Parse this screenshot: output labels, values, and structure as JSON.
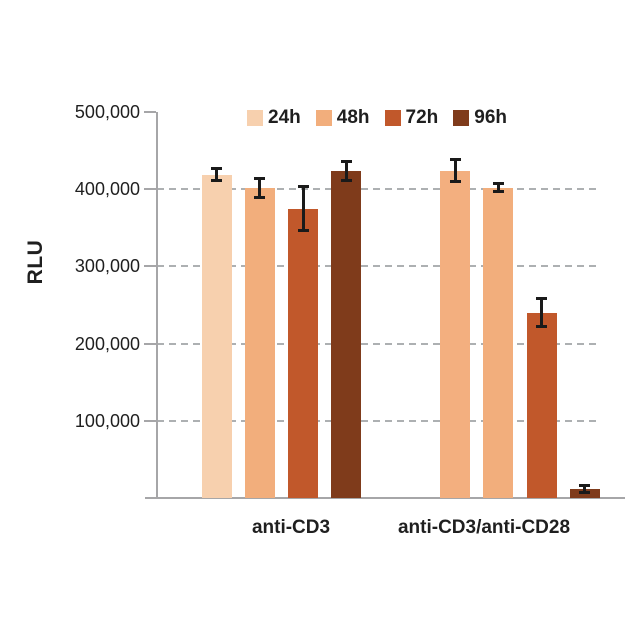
{
  "chart_data": {
    "type": "bar",
    "title": "",
    "ylabel": "RLU",
    "xlabel": "",
    "ylim": [
      0,
      500000
    ],
    "yticks": [
      {
        "value": 100000,
        "label": "100,000"
      },
      {
        "value": 200000,
        "label": "200,000"
      },
      {
        "value": 300000,
        "label": "300,000"
      },
      {
        "value": 400000,
        "label": "400,000"
      },
      {
        "value": 500000,
        "label": "500,000"
      }
    ],
    "gridlines": [
      100000,
      200000,
      300000,
      400000
    ],
    "grid_style": "horizontal dashed",
    "legend_position": "top",
    "categories": [
      "anti-CD3",
      "anti-CD3/anti-CD28"
    ],
    "series": [
      {
        "name": "24h",
        "color": "#F7D0AE",
        "values": [
          419000,
          424000
        ],
        "errors": [
          9000,
          15000
        ],
        "bar_colors": [
          "#F7D0AE",
          "#F3AF7F"
        ]
      },
      {
        "name": "48h",
        "color": "#F2AE7C",
        "values": [
          402000,
          402000
        ],
        "errors": [
          13000,
          6000
        ],
        "bar_colors": [
          "#F2AE7C",
          "#F2AE7C"
        ]
      },
      {
        "name": "72h",
        "color": "#C1582B",
        "values": [
          375000,
          240000
        ],
        "errors": [
          29000,
          19000
        ],
        "bar_colors": [
          "#C1582B",
          "#C1582B"
        ]
      },
      {
        "name": "96h",
        "color": "#7F3B1B",
        "values": [
          424000,
          12000
        ],
        "errors": [
          13000,
          5000
        ],
        "bar_colors": [
          "#7F3B1B",
          "#7F3B1B"
        ]
      }
    ],
    "colors": {
      "error_bar": "#1A1A1A",
      "axis": "#A6A6A8",
      "gridline": "#ADB0B2",
      "text": "#1F1F1F"
    }
  }
}
